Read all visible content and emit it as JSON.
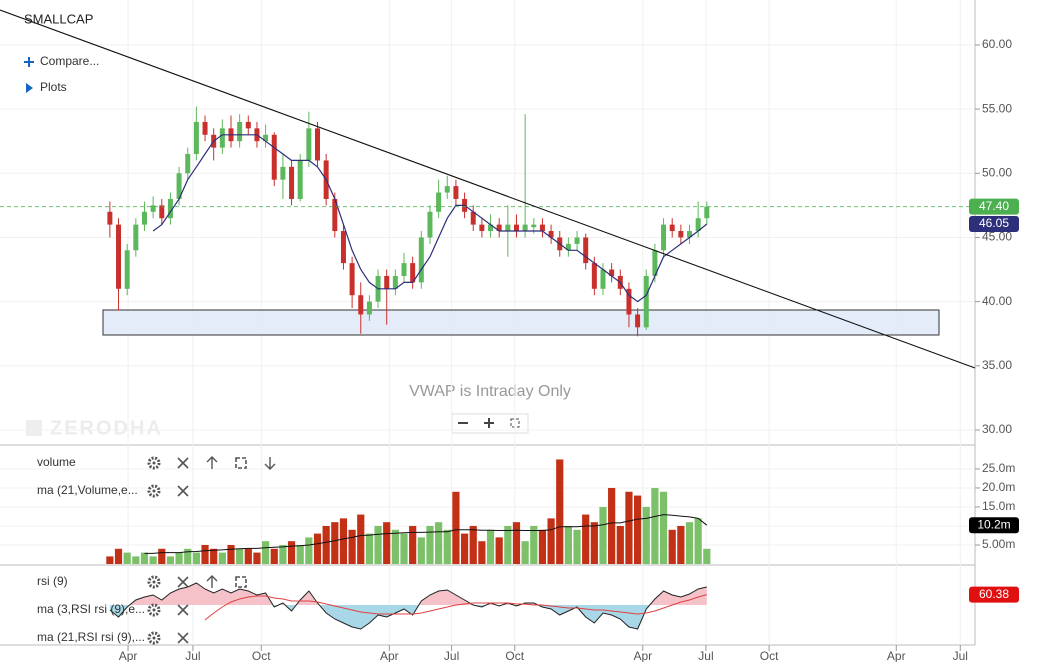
{
  "ui": {
    "symbol": "SMALLCAP",
    "compare": "Compare...",
    "plots": "Plots",
    "note": "VWAP is Intraday Only",
    "watermark": "ZERODHA"
  },
  "chart_data": [
    {
      "type": "candlestick",
      "up_color": "#5cb85c",
      "down_color": "#c9302c",
      "grid": true,
      "ylim": [
        28.83,
        63.5
      ],
      "yticks": [
        {
          "value": 30,
          "label": "30.00"
        },
        {
          "value": 35,
          "label": "35.00"
        },
        {
          "value": 40,
          "label": "40.00"
        },
        {
          "value": 45,
          "label": "45.00"
        },
        {
          "value": 50,
          "label": "50.00"
        },
        {
          "value": 55,
          "label": "55.00"
        },
        {
          "value": 60,
          "label": "60.00"
        }
      ],
      "ohlc": [
        [
          47,
          47.8,
          45,
          46
        ],
        [
          46,
          46.5,
          39.3,
          41
        ],
        [
          41,
          44.5,
          40.5,
          44
        ],
        [
          44,
          46.5,
          43.5,
          46
        ],
        [
          46,
          47.8,
          45.5,
          47
        ],
        [
          47,
          48.2,
          46.5,
          47.5
        ],
        [
          47.5,
          48,
          46,
          46.5
        ],
        [
          46.5,
          48.5,
          46,
          48
        ],
        [
          48,
          50.5,
          47.5,
          50
        ],
        [
          50,
          52,
          49.5,
          51.5
        ],
        [
          51.5,
          55.2,
          51,
          54
        ],
        [
          54,
          54.5,
          52.5,
          53
        ],
        [
          53,
          53.5,
          51,
          52
        ],
        [
          52,
          54.2,
          51.5,
          53.5
        ],
        [
          53.5,
          54.5,
          52,
          52.5
        ],
        [
          52.5,
          54.6,
          52,
          54
        ],
        [
          54,
          54.5,
          53,
          53.5
        ],
        [
          53.5,
          54,
          52,
          52.5
        ],
        [
          52.5,
          53.8,
          52,
          53
        ],
        [
          53,
          53.2,
          49,
          49.5
        ],
        [
          49.5,
          51.5,
          48,
          50.5
        ],
        [
          50.5,
          51,
          47.5,
          48
        ],
        [
          48,
          51.5,
          47.8,
          51
        ],
        [
          51,
          54.8,
          50.5,
          53.5
        ],
        [
          53.5,
          54,
          50.5,
          51
        ],
        [
          51,
          51.5,
          47.5,
          48
        ],
        [
          48,
          48.5,
          45,
          45.5
        ],
        [
          45.5,
          46,
          42.5,
          43
        ],
        [
          43,
          43.5,
          39.5,
          40.5
        ],
        [
          40.5,
          41.5,
          37.5,
          39
        ],
        [
          39,
          40.5,
          38.5,
          40
        ],
        [
          40,
          42.5,
          39.5,
          42
        ],
        [
          42,
          42.5,
          38.2,
          41
        ],
        [
          41,
          42.5,
          40.5,
          42
        ],
        [
          42,
          43.8,
          41.5,
          43
        ],
        [
          43,
          43.5,
          41,
          41.5
        ],
        [
          41.5,
          45.5,
          41,
          45
        ],
        [
          45,
          47.5,
          44.5,
          47
        ],
        [
          47,
          49.5,
          46.5,
          48.5
        ],
        [
          48.5,
          49.8,
          48,
          49
        ],
        [
          49,
          49.5,
          47.5,
          48
        ],
        [
          48,
          48.5,
          46.5,
          47
        ],
        [
          47,
          47.5,
          45.5,
          46
        ],
        [
          46,
          46.5,
          45,
          45.5
        ],
        [
          45.5,
          46.8,
          45,
          46
        ],
        [
          46,
          46.5,
          45,
          45.5
        ],
        [
          45.5,
          47.5,
          43.5,
          46
        ],
        [
          46,
          46.8,
          45,
          45.5
        ],
        [
          45.5,
          54.6,
          45,
          46
        ],
        [
          45.8,
          46.5,
          45.3,
          46
        ],
        [
          46,
          46.5,
          45,
          45.5
        ],
        [
          45.5,
          46,
          44.5,
          45
        ],
        [
          45,
          45.5,
          43.5,
          44
        ],
        [
          44,
          45,
          43.5,
          44.5
        ],
        [
          44.5,
          45.5,
          44,
          45
        ],
        [
          45,
          45.3,
          42.5,
          43
        ],
        [
          43,
          43.5,
          40.5,
          41
        ],
        [
          41,
          43,
          40.5,
          42.5
        ],
        [
          42.5,
          43,
          41.5,
          42
        ],
        [
          42,
          42.5,
          40.5,
          41
        ],
        [
          41,
          41.5,
          38,
          39
        ],
        [
          39,
          39.5,
          37.3,
          38
        ],
        [
          38,
          42.5,
          37.8,
          42
        ],
        [
          42,
          44.5,
          41.5,
          44
        ],
        [
          44,
          46.5,
          43.5,
          46
        ],
        [
          46,
          46.5,
          45,
          45.5
        ],
        [
          45.5,
          46,
          44.5,
          45
        ],
        [
          45,
          46,
          44.5,
          45.5
        ],
        [
          45.5,
          47.8,
          45,
          46.5
        ],
        [
          46.5,
          47.8,
          46,
          47.4
        ]
      ],
      "ma": {
        "color": "#2d2f7a",
        "values": [
          null,
          null,
          null,
          null,
          null,
          45.5,
          46,
          47,
          48,
          49.5,
          50.5,
          51.5,
          52.5,
          53,
          53,
          53,
          53,
          53,
          52.5,
          52,
          51.5,
          51,
          51,
          51,
          50.5,
          49.5,
          48,
          46,
          44,
          42.5,
          41.5,
          41,
          41,
          41,
          41.5,
          41.5,
          42.5,
          43.5,
          45,
          46.5,
          47.5,
          47.5,
          47,
          46.5,
          46,
          45.5,
          45.5,
          45.5,
          45.5,
          45.5,
          45.5,
          45,
          44.5,
          44,
          44,
          43.5,
          43,
          42.5,
          42,
          41.5,
          40.5,
          40,
          40.5,
          42,
          43.5,
          44,
          44.5,
          45,
          45.5,
          46.05
        ]
      },
      "last_tag": {
        "value": 47.4,
        "label": "47.40",
        "color": "#4caf50"
      },
      "ma_tag": {
        "value": 46.05,
        "label": "46.05",
        "color": "#2d2f7a"
      }
    },
    {
      "type": "bar",
      "up_color": "#7cc06a",
      "down_color": "#c23016",
      "grid": true,
      "ylim": [
        0,
        31.3
      ],
      "yticks": [
        {
          "value": 5,
          "label": "5.00m"
        },
        {
          "value": 10,
          "label": "10.0m"
        },
        {
          "value": 15,
          "label": "15.0m"
        },
        {
          "value": 20,
          "label": "20.0m"
        },
        {
          "value": 25,
          "label": "25.0m"
        }
      ],
      "series": [
        {
          "name": "volume",
          "values": [
            2,
            4,
            3,
            2,
            3,
            2,
            4,
            2,
            3,
            4,
            3,
            5,
            4,
            3,
            5,
            4,
            4,
            3,
            6,
            4,
            5,
            6,
            5,
            7,
            8,
            10,
            11,
            12,
            9,
            13,
            8,
            10,
            11,
            9,
            8,
            10,
            7,
            10,
            11,
            9,
            19,
            8,
            10,
            6,
            9,
            7,
            10,
            11,
            6,
            10,
            9,
            12,
            27.5,
            10,
            9,
            13,
            11,
            15,
            20,
            10,
            19,
            18,
            15,
            20,
            19,
            9,
            10,
            11,
            12,
            4
          ]
        },
        {
          "name": "ma (21,Volume,e...",
          "color": "#111111",
          "values": [
            null,
            null,
            null,
            null,
            2.8,
            2.8,
            3,
            3,
            3,
            3.2,
            3.3,
            3.5,
            3.6,
            3.7,
            3.9,
            4,
            4.1,
            4.1,
            4.3,
            4.4,
            4.5,
            4.7,
            4.8,
            5,
            5.3,
            5.7,
            6.1,
            6.6,
            7,
            7.5,
            7.6,
            7.8,
            8,
            8.1,
            8.2,
            8.3,
            8.3,
            8.4,
            8.5,
            8.5,
            9,
            9,
            9,
            8.9,
            8.9,
            8.8,
            8.8,
            8.9,
            8.8,
            8.8,
            8.8,
            9,
            9.8,
            9.8,
            9.8,
            10,
            10,
            10.3,
            10.8,
            10.8,
            11.3,
            11.8,
            12,
            12.5,
            13,
            12.8,
            12.6,
            12.4,
            12,
            10.2
          ]
        }
      ],
      "ma_tag": {
        "value": 10.2,
        "label": "10.2m",
        "color": "#000000"
      }
    },
    {
      "type": "line",
      "grid": true,
      "ylim": [
        10,
        90
      ],
      "fill_above": "#f4c2c8",
      "fill_below": "#a8d8e8",
      "series": [
        {
          "name": "rsi (9)",
          "color": "#222222",
          "values": [
            45,
            38,
            48,
            55,
            58,
            60,
            55,
            62,
            66,
            68,
            72,
            66,
            62,
            66,
            62,
            66,
            64,
            60,
            62,
            48,
            52,
            44,
            55,
            64,
            52,
            42,
            36,
            32,
            28,
            26,
            32,
            40,
            38,
            42,
            46,
            40,
            54,
            60,
            64,
            65,
            60,
            55,
            50,
            48,
            52,
            49,
            52,
            49,
            52,
            52,
            48,
            46,
            40,
            44,
            48,
            38,
            32,
            42,
            40,
            36,
            28,
            26,
            46,
            56,
            64,
            60,
            58,
            61,
            66,
            68
          ]
        },
        {
          "name": "ma (21,RSI rsi (9),...",
          "color": "#e04040",
          "values": [
            null,
            null,
            null,
            null,
            null,
            null,
            null,
            null,
            null,
            null,
            null,
            35,
            42,
            48,
            53,
            56,
            58,
            59,
            59,
            57,
            56,
            54,
            54,
            54,
            53,
            51,
            49,
            47,
            45,
            43,
            42,
            41,
            41,
            41,
            41,
            41,
            42,
            44,
            46,
            48,
            50,
            51,
            52,
            52,
            52,
            52,
            52,
            51,
            51,
            50,
            50,
            49,
            48,
            47,
            47,
            46,
            45,
            45,
            44,
            43,
            42,
            41,
            42,
            44,
            47,
            50,
            53,
            55,
            58,
            60.38
          ]
        }
      ],
      "other_studies": [
        "ma (3,RSI rsi (9),e..."
      ],
      "ma_tag": {
        "value": 60.38,
        "label": "60.38",
        "color": "#e01010"
      },
      "xlim": [
        -12.7,
        100
      ],
      "xticks": [
        {
          "value": 2.1,
          "label": "Apr"
        },
        {
          "value": 9.6,
          "label": "Jul"
        },
        {
          "value": 17.5,
          "label": "Oct"
        },
        {
          "value": 32.3,
          "label": "Apr"
        },
        {
          "value": 39.5,
          "label": "Jul"
        },
        {
          "value": 46.8,
          "label": "Oct"
        },
        {
          "value": 61.6,
          "label": "Apr"
        },
        {
          "value": 68.9,
          "label": "Jul"
        },
        {
          "value": 76.2,
          "label": "Oct"
        },
        {
          "value": 90.9,
          "label": "Apr"
        },
        {
          "value": 98.3,
          "label": "Jul"
        }
      ]
    }
  ]
}
